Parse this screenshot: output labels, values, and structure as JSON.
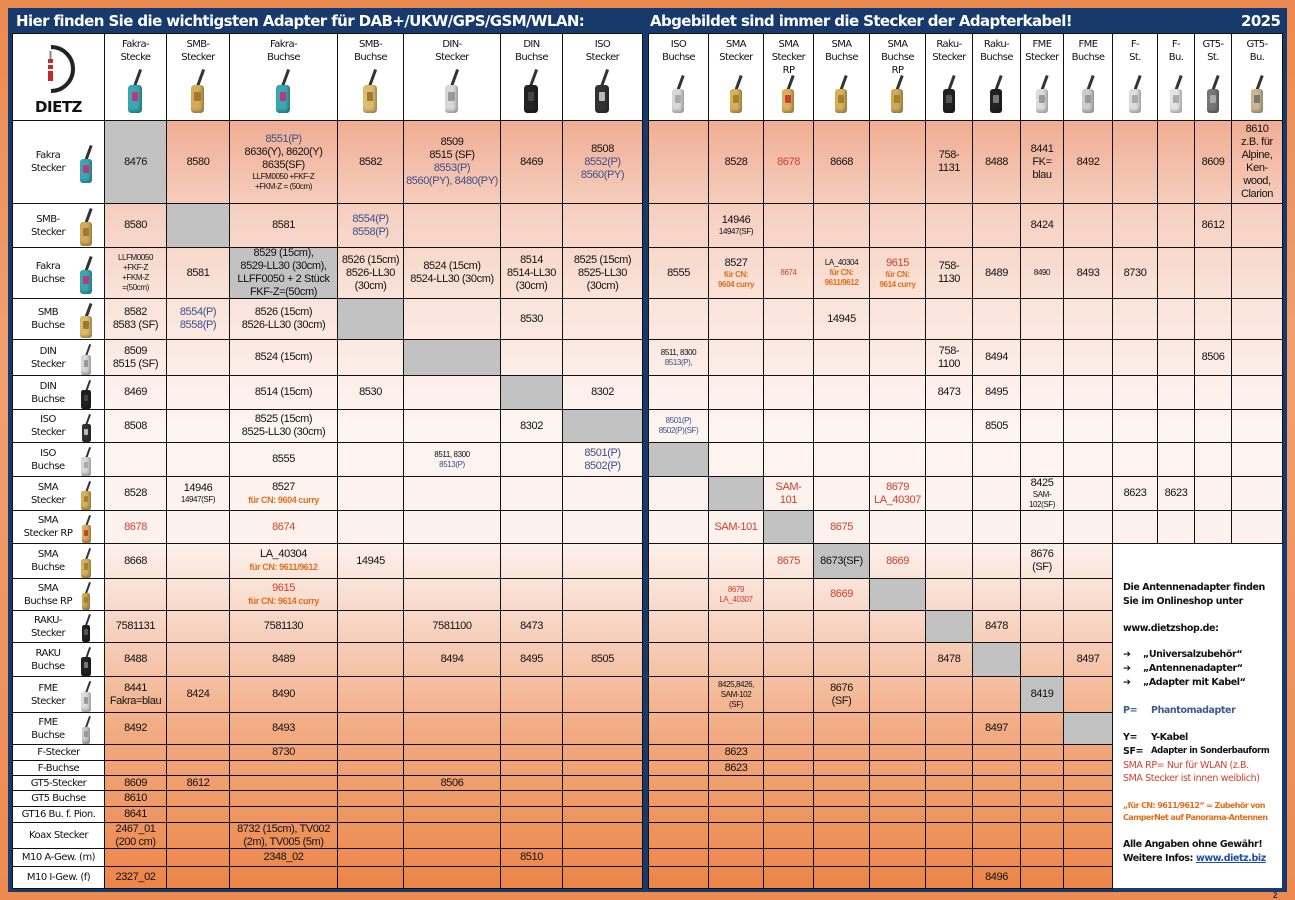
{
  "header": {
    "left_title": "Hier finden Sie die wichtigsten Adapter für DAB+/UKW/GPS/GSM/WLAN:",
    "right_title": "Abgebildet sind immer die Stecker der Adapterkabel!",
    "year": "2025"
  },
  "logo": {
    "text": "DIETZ"
  },
  "colors": {
    "navy": "#17396b",
    "orange": "#ec8a50",
    "blue_text": "#3c4f8c",
    "red_text": "#d4402c",
    "orange_text": "#e0701c",
    "diagonal_gray": "#c2c2c2"
  },
  "columns": {
    "left": [
      {
        "label": "Fakra-\nStecke",
        "icon": "fakra-plug"
      },
      {
        "label": "SMB-\nStecker",
        "icon": "smb-plug"
      },
      {
        "label": "Fakra-\nBuchse",
        "icon": "fakra-jack"
      },
      {
        "label": "SMB-\nBuchse",
        "icon": "smb-jack"
      },
      {
        "label": "DIN-\nStecker",
        "icon": "din-plug"
      },
      {
        "label": "DIN\nBuchse",
        "icon": "din-jack"
      },
      {
        "label": "ISO\nStecker",
        "icon": "iso-plug"
      }
    ],
    "right": [
      {
        "label": "ISO\nBuchse",
        "icon": "iso-jack"
      },
      {
        "label": "SMA\nStecker",
        "icon": "sma-plug"
      },
      {
        "label": "SMA\nStecker\nRP",
        "icon": "sma-rp-plug"
      },
      {
        "label": "SMA\nBuchse",
        "icon": "sma-jack"
      },
      {
        "label": "SMA\nBuchse\nRP",
        "icon": "sma-rp-jack"
      },
      {
        "label": "Raku-\nStecker",
        "icon": "raku-plug"
      },
      {
        "label": "Raku-\nBuchse",
        "icon": "raku-jack"
      },
      {
        "label": "FME\nStecker",
        "icon": "fme-plug"
      },
      {
        "label": "FME\nBuchse",
        "icon": "fme-jack"
      },
      {
        "label": "F-\nSt.",
        "icon": "f-plug"
      },
      {
        "label": "F-\nBu.",
        "icon": "f-jack"
      },
      {
        "label": "GT5-\nSt.",
        "icon": "gt5-plug"
      },
      {
        "label": "GT5-\nBu.",
        "icon": "gt5-jack"
      }
    ]
  },
  "rows": [
    {
      "label": "Fakra\nStecker",
      "icon": "fakra-plug",
      "left": [
        {
          "g": 1,
          "l": [
            "8476"
          ]
        },
        [
          "8580"
        ],
        [
          [
            "8551(P)",
            "b"
          ],
          "8636(Y), 8620(Y)",
          "8635(SF)",
          [
            "LLFM0050 +FKF-Z",
            "s"
          ],
          [
            "+FKM-Z = (50cm)",
            "s"
          ]
        ],
        [
          "8582"
        ],
        [
          "8509",
          "8515 (SF)",
          [
            "8553(P)",
            "b"
          ],
          [
            "8560(PY), 8480(PY)",
            "b"
          ]
        ],
        [
          "8469"
        ],
        [
          "8508",
          [
            "8552(P)",
            "b"
          ],
          [
            "8560(PY)",
            "b"
          ]
        ]
      ],
      "right": [
        [],
        [
          "8528"
        ],
        [
          [
            "8678",
            "r"
          ]
        ],
        [
          "8668"
        ],
        [],
        [
          "758-",
          "1131"
        ],
        [
          "8488"
        ],
        [
          "8441",
          "FK=",
          "blau"
        ],
        [
          "8492"
        ],
        [],
        [],
        [
          "8609"
        ],
        [
          "8610",
          "z.B. für",
          "Alpine,",
          "Ken-",
          "wood,",
          "Clarion"
        ]
      ]
    },
    {
      "label": "SMB-\nStecker",
      "icon": "smb-plug",
      "left": [
        [
          "8580"
        ],
        {
          "g": 1,
          "l": []
        },
        [
          "8581"
        ],
        [
          [
            "8554(P)",
            "b"
          ],
          [
            "8558(P)",
            "b"
          ]
        ],
        [],
        [],
        []
      ],
      "right": [
        [],
        [
          "14946",
          [
            "14947(SF)",
            "s"
          ]
        ],
        [],
        [],
        [],
        [],
        [],
        [
          "8424"
        ],
        [],
        [],
        [],
        [
          "8612"
        ],
        []
      ]
    },
    {
      "label": "Fakra\nBuchse",
      "icon": "fakra-jack",
      "left": [
        [
          [
            "LLFM0050",
            "s"
          ],
          [
            "+FKF-Z",
            "s"
          ],
          [
            "+FKM-Z",
            "s"
          ],
          [
            "=(50cm)",
            "s"
          ]
        ],
        [
          "8581"
        ],
        {
          "g": 1,
          "l": [
            "8529 (15cm),",
            "8529-LL30 (30cm),",
            "LLFF0050 + 2 Stück",
            "FKF-Z=(50cm)"
          ]
        },
        [
          "8526 (15cm)",
          "8526-LL30",
          "(30cm)"
        ],
        [
          "8524 (15cm)",
          "8524-LL30 (30cm)"
        ],
        [
          "8514",
          "8514-LL30",
          "(30cm)"
        ],
        [
          "8525 (15cm)",
          "8525-LL30",
          "(30cm)"
        ]
      ],
      "right": [
        [
          "8555"
        ],
        [
          "8527",
          [
            "für CN:",
            "so"
          ],
          [
            "9604 curry",
            "so"
          ]
        ],
        [
          [
            "8674",
            "sr"
          ]
        ],
        [
          [
            "LA_40304",
            "s"
          ],
          [
            "für CN:",
            "so"
          ],
          [
            "9611/9612",
            "so"
          ]
        ],
        [
          [
            "9615",
            "r"
          ],
          [
            "für CN:",
            "so"
          ],
          [
            "9614 curry",
            "so"
          ]
        ],
        [
          "758-",
          "1130"
        ],
        [
          "8489"
        ],
        [
          [
            "8490",
            "s"
          ]
        ],
        [
          "8493"
        ],
        [
          "8730"
        ],
        [],
        [],
        []
      ]
    },
    {
      "label": "SMB\nBuchse",
      "icon": "smb-jack",
      "left": [
        [
          "8582",
          "8583 (SF)"
        ],
        [
          [
            "8554(P)",
            "b"
          ],
          [
            "8558(P)",
            "b"
          ]
        ],
        [
          "8526 (15cm)",
          "8526-LL30 (30cm)"
        ],
        {
          "g": 1,
          "l": []
        },
        [],
        [
          "8530"
        ],
        []
      ],
      "right": [
        [],
        [],
        [],
        [
          "14945"
        ],
        [],
        [],
        [],
        [],
        [],
        [],
        [],
        [],
        []
      ]
    },
    {
      "label": "DIN\nStecker",
      "icon": "din-plug",
      "left": [
        [
          "8509",
          "8515 (SF)"
        ],
        [],
        [
          "8524 (15cm)"
        ],
        [],
        {
          "g": 1,
          "l": []
        },
        [],
        []
      ],
      "right": [
        [
          [
            "8511, 8300",
            "s"
          ],
          [
            "8513(P),",
            "sb"
          ]
        ],
        [],
        [],
        [],
        [],
        [
          "758-",
          "1100"
        ],
        [
          "8494"
        ],
        [],
        [],
        [],
        [],
        [
          "8506"
        ],
        []
      ]
    },
    {
      "label": "DIN\nBuchse",
      "icon": "din-jack",
      "left": [
        [
          "8469"
        ],
        [],
        [
          "8514 (15cm)"
        ],
        [
          "8530"
        ],
        [],
        {
          "g": 1,
          "l": []
        },
        [
          "8302"
        ]
      ],
      "right": [
        [],
        [],
        [],
        [],
        [],
        [
          "8473"
        ],
        [
          "8495"
        ],
        [],
        [],
        [],
        [],
        [],
        []
      ]
    },
    {
      "label": "ISO\nStecker",
      "icon": "iso-plug",
      "left": [
        [
          "8508"
        ],
        [],
        [
          "8525 (15cm)",
          "8525-LL30 (30cm)"
        ],
        [],
        [],
        [
          "8302"
        ],
        {
          "g": 1,
          "l": []
        }
      ],
      "right": [
        [
          [
            "8501(P)",
            "sb"
          ],
          [
            "8502(P)(SF)",
            "sb"
          ]
        ],
        [],
        [],
        [],
        [],
        [],
        [
          "8505"
        ],
        [],
        [],
        [],
        [],
        [],
        []
      ]
    },
    {
      "label": "ISO\nBuchse",
      "icon": "iso-jack",
      "left": [
        [],
        [],
        [
          "8555"
        ],
        [],
        [
          [
            "8511, 8300",
            "s"
          ],
          [
            "8513(P)",
            "sb"
          ]
        ],
        [],
        [
          [
            "8501(P)",
            "b"
          ],
          [
            "8502(P)",
            "b"
          ]
        ]
      ],
      "right": [
        {
          "g": 1,
          "l": []
        },
        [],
        [],
        [],
        [],
        [],
        [],
        [],
        [],
        [],
        [],
        [],
        []
      ]
    },
    {
      "label": "SMA\nStecker",
      "icon": "sma-plug",
      "left": [
        [
          "8528"
        ],
        [
          "14946",
          [
            "14947(SF)",
            "s"
          ]
        ],
        [
          "8527",
          [
            "für CN: 9604 curry",
            "o"
          ]
        ],
        [],
        [],
        [],
        []
      ],
      "right": [
        [],
        {
          "g": 1,
          "l": []
        },
        [
          [
            "SAM-",
            "r"
          ],
          [
            "101",
            "r"
          ]
        ],
        [],
        [
          [
            "8679",
            "r"
          ],
          [
            "LA_40307",
            "r"
          ]
        ],
        [],
        [],
        [
          "8425",
          [
            "SAM-",
            "s"
          ],
          [
            "102(SF)",
            "s"
          ]
        ],
        [],
        [
          "8623"
        ],
        [
          "8623"
        ],
        [],
        []
      ]
    },
    {
      "label": "SMA\nStecker RP",
      "icon": "sma-rp-plug",
      "left": [
        [
          [
            "8678",
            "r"
          ]
        ],
        [],
        [
          [
            "8674",
            "r"
          ]
        ],
        [],
        [],
        [],
        []
      ],
      "right": [
        [],
        [
          [
            "SAM-101",
            "r"
          ]
        ],
        {
          "g": 1,
          "l": []
        },
        [
          [
            "8675",
            "r"
          ]
        ],
        [],
        [],
        [],
        [],
        [],
        [],
        [],
        [],
        []
      ]
    },
    {
      "label": "SMA\nBuchse",
      "icon": "sma-jack",
      "left": [
        [
          "8668"
        ],
        [],
        [
          "LA_40304",
          [
            "für CN: 9611/9612",
            "o"
          ]
        ],
        [
          "14945"
        ],
        [],
        [],
        []
      ],
      "right": [
        [],
        [],
        [
          [
            "8675",
            "r"
          ]
        ],
        {
          "g": 1,
          "l": [
            "8673(SF)"
          ]
        },
        [
          [
            "8669",
            "r"
          ]
        ],
        [],
        [],
        [
          "8676",
          "(SF)"
        ],
        []
      ]
    },
    {
      "label": "SMA\nBuchse RP",
      "icon": "sma-rp-jack",
      "left": [
        [],
        [],
        [
          [
            "9615",
            "r"
          ],
          [
            "für CN: 9614 curry",
            "o"
          ]
        ],
        [],
        [],
        [],
        []
      ],
      "right": [
        [],
        [
          [
            "8679",
            "sr"
          ],
          [
            "LA_40307",
            "sr"
          ]
        ],
        [],
        [
          [
            "8669",
            "r"
          ]
        ],
        {
          "g": 1,
          "l": []
        },
        [],
        [],
        [],
        []
      ]
    },
    {
      "label": "RAKU-\nStecker",
      "icon": "raku-plug",
      "left": [
        [
          "7581131"
        ],
        [],
        [
          "7581130"
        ],
        [],
        [
          "7581100"
        ],
        [
          "8473"
        ],
        []
      ],
      "right": [
        [],
        [],
        [],
        [],
        [],
        {
          "g": 1,
          "l": []
        },
        [
          "8478"
        ],
        [],
        []
      ]
    },
    {
      "label": "RAKU\nBuchse",
      "icon": "raku-jack",
      "left": [
        [
          "8488"
        ],
        [],
        [
          "8489"
        ],
        [],
        [
          "8494"
        ],
        [
          "8495"
        ],
        [
          "8505"
        ]
      ],
      "right": [
        [],
        [],
        [],
        [],
        [],
        [
          "8478"
        ],
        {
          "g": 1,
          "l": []
        },
        [],
        [
          "8497"
        ]
      ]
    },
    {
      "label": "FME\nStecker",
      "icon": "fme-plug",
      "left": [
        [
          "8441",
          "Fakra=blau"
        ],
        [
          "8424"
        ],
        [
          "8490"
        ],
        [],
        [],
        [],
        []
      ],
      "right": [
        [],
        [
          [
            "8425,8426,",
            "s"
          ],
          [
            "SAM-102",
            "s"
          ],
          [
            "(SF)",
            "s"
          ]
        ],
        [],
        [
          "8676",
          "(SF)"
        ],
        [],
        [],
        [],
        {
          "g": 1,
          "l": [
            "8419"
          ]
        },
        []
      ]
    },
    {
      "label": "FME\nBuchse",
      "icon": "fme-jack",
      "left": [
        [
          "8492"
        ],
        [],
        [
          "8493"
        ],
        [],
        [],
        [],
        []
      ],
      "right": [
        [],
        [],
        [],
        [],
        [],
        [],
        [
          "8497"
        ],
        [],
        {
          "g": 1,
          "l": []
        }
      ]
    },
    {
      "label": "F-Stecker",
      "left": [
        [],
        [],
        [
          "8730"
        ],
        [],
        [],
        [],
        []
      ],
      "right": [
        [],
        [
          "8623"
        ],
        [],
        [],
        [],
        [],
        [],
        [],
        []
      ]
    },
    {
      "label": "F-Buchse",
      "left": [
        [],
        [],
        [],
        [],
        [],
        [],
        []
      ],
      "right": [
        [],
        [
          "8623"
        ],
        [],
        [],
        [],
        [],
        [],
        [],
        []
      ]
    },
    {
      "label": "GT5-Stecker",
      "left": [
        [
          "8609"
        ],
        [
          "8612"
        ],
        [],
        [],
        [
          "8506"
        ],
        [],
        []
      ],
      "right": [
        [],
        [],
        [],
        [],
        [],
        [],
        [],
        [],
        []
      ]
    },
    {
      "label": "GT5 Buchse",
      "left": [
        [
          "8610"
        ],
        [],
        [],
        [],
        [],
        [],
        []
      ],
      "right": [
        [],
        [],
        [],
        [],
        [],
        [],
        [],
        [],
        []
      ]
    },
    {
      "label": "GT16 Bu. f. Pion.",
      "left": [
        [
          "8641"
        ],
        [],
        [],
        [],
        [],
        [],
        []
      ],
      "right": [
        [],
        [],
        [],
        [],
        [],
        [],
        [],
        [],
        []
      ]
    },
    {
      "label": "Koax Stecker",
      "left": [
        [
          "2467_01",
          "(200 cm)"
        ],
        [],
        [
          "8732 (15cm), TV002",
          "(2m), TV005 (5m)"
        ],
        [],
        [],
        [],
        []
      ],
      "right": [
        [],
        [],
        [],
        [],
        [],
        [],
        [],
        [],
        []
      ]
    },
    {
      "label": "M10 A-Gew. (m)",
      "left": [
        [],
        [],
        [
          "2348_02"
        ],
        [],
        [],
        [
          "8510"
        ],
        []
      ],
      "right": [
        [],
        [],
        [],
        [],
        [],
        [],
        [],
        [],
        []
      ]
    },
    {
      "label": "M10 I-Gew. (f)",
      "left": [
        [
          "2327_02"
        ],
        [],
        [],
        [],
        [],
        [],
        []
      ],
      "right": [
        [],
        [],
        [],
        [],
        [],
        [],
        [
          "8496"
        ],
        [],
        []
      ]
    }
  ],
  "info": {
    "line1": "Die Antennenadapter finden",
    "line2": "Sie  im Onlineshop unter",
    "shop": "www.dietzshop.de:",
    "arrow_icon": "arrow-right-icon",
    "links": [
      "„Universalzubehör“",
      "„Antennenadapter“",
      "„Adapter mit Kabel“"
    ],
    "legend": [
      {
        "key": "P=",
        "text": "Phantomadapter"
      },
      {
        "key": "Y=",
        "text": "Y-Kabel"
      },
      {
        "key": "SF=",
        "text": "Adapter in Sonderbauform"
      }
    ],
    "sma_rp_1": "SMA RP= Nur für WLAN (z.B.",
    "sma_rp_2": "SMA Stecker ist innen weiblich)",
    "cn_1": "„für CN: 9611/9612“  = Zubehör von",
    "cn_2": "CamperNet auf Panorama-Antennen",
    "disclaimer": "Alle Angaben ohne Gewähr!",
    "more_label": "Weitere Infos:",
    "more_link": "www.dietz.biz"
  },
  "page_number": "2"
}
